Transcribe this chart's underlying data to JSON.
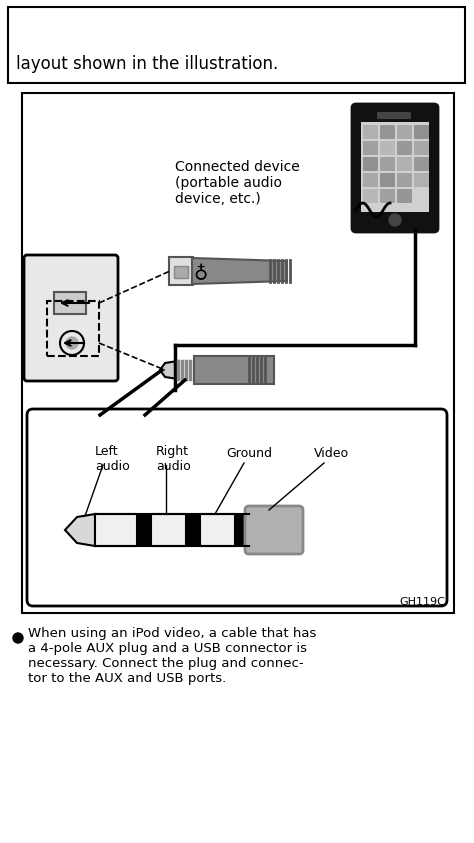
{
  "bg_color": "#ffffff",
  "top_text_line": "layout shown in the illustration.",
  "device_label": "Connected device\n(portable audio\ndevice, etc.)",
  "bottom_text": "When using an iPod video, a cable that has\na 4-pole AUX plug and a USB connector is\nnecessary. Connect the plug and connec-\ntor to the AUX and USB ports.",
  "ref_code": "GH119C",
  "label_left": "Left\naudio",
  "label_right": "Right\naudio",
  "label_ground": "Ground",
  "label_video": "Video",
  "fig_w": 4.74,
  "fig_h": 8.43,
  "dpi": 100
}
